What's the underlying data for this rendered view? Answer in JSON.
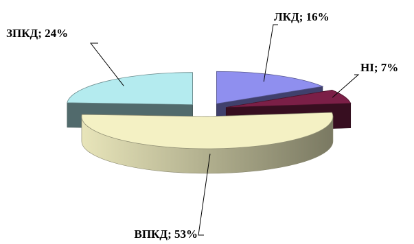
{
  "chart_data": {
    "type": "pie",
    "title": "",
    "style": "3d-exploded",
    "slices": [
      {
        "name": "ЛКД",
        "value": 16,
        "label": "ЛКД; 16%",
        "color": "#8f8fef"
      },
      {
        "name": "НІ",
        "value": 7,
        "label": "НІ; 7%",
        "color": "#7b1f47"
      },
      {
        "name": "ВПКД",
        "value": 53,
        "label": "ВПКД; 53%",
        "color": "#f4f1c4"
      },
      {
        "name": "ЗПКД",
        "value": 24,
        "label": "ЗПКД; 24%",
        "color": "#b4ebef"
      }
    ]
  }
}
